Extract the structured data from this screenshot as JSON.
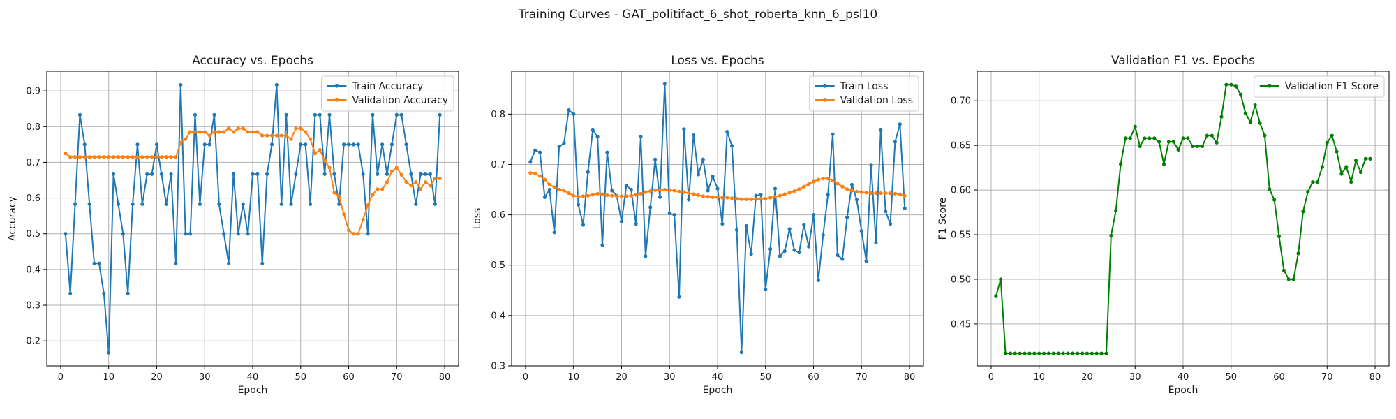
{
  "figure_title": "Training Curves - GAT_politifact_6_shot_roberta_knn_6_psl10",
  "chart_data": [
    {
      "type": "line",
      "title": "Accuracy vs. Epochs",
      "xlabel": "Epoch",
      "ylabel": "Accuracy",
      "xlim": [
        -2.9,
        82.9
      ],
      "ylim": [
        0.13,
        0.955
      ],
      "xticks": [
        0,
        10,
        20,
        30,
        40,
        50,
        60,
        70,
        80
      ],
      "yticks": [
        0.2,
        0.3,
        0.4,
        0.5,
        0.6,
        0.7,
        0.8,
        0.9
      ],
      "ytick_decimals": 1,
      "grid": true,
      "legend": "upper-right",
      "x_start": 1,
      "series": [
        {
          "name": "Train Accuracy",
          "color": "#1f77b4",
          "values": [
            0.5,
            0.333,
            0.583,
            0.833,
            0.75,
            0.583,
            0.417,
            0.417,
            0.333,
            0.167,
            0.667,
            0.583,
            0.5,
            0.333,
            0.583,
            0.75,
            0.583,
            0.667,
            0.667,
            0.75,
            0.667,
            0.583,
            0.667,
            0.417,
            0.917,
            0.5,
            0.5,
            0.833,
            0.583,
            0.75,
            0.75,
            0.833,
            0.583,
            0.5,
            0.417,
            0.667,
            0.5,
            0.583,
            0.5,
            0.667,
            0.667,
            0.417,
            0.667,
            0.75,
            0.917,
            0.583,
            0.833,
            0.583,
            0.667,
            0.75,
            0.75,
            0.583,
            0.833,
            0.833,
            0.667,
            0.833,
            0.667,
            0.583,
            0.75,
            0.75,
            0.75,
            0.75,
            0.667,
            0.5,
            0.833,
            0.667,
            0.75,
            0.667,
            0.75,
            0.833,
            0.833,
            0.75,
            0.667,
            0.583,
            0.667,
            0.667,
            0.667,
            0.583,
            0.833
          ]
        },
        {
          "name": "Validation Accuracy",
          "color": "#ff7f0e",
          "values": [
            0.725,
            0.715,
            0.715,
            0.715,
            0.715,
            0.715,
            0.715,
            0.715,
            0.715,
            0.715,
            0.715,
            0.715,
            0.715,
            0.715,
            0.715,
            0.715,
            0.715,
            0.715,
            0.715,
            0.715,
            0.715,
            0.715,
            0.715,
            0.715,
            0.755,
            0.765,
            0.785,
            0.785,
            0.785,
            0.785,
            0.775,
            0.785,
            0.785,
            0.785,
            0.795,
            0.785,
            0.795,
            0.795,
            0.785,
            0.785,
            0.785,
            0.775,
            0.775,
            0.775,
            0.775,
            0.775,
            0.775,
            0.765,
            0.795,
            0.795,
            0.785,
            0.765,
            0.725,
            0.735,
            0.705,
            0.685,
            0.615,
            0.605,
            0.555,
            0.51,
            0.5,
            0.5,
            0.54,
            0.58,
            0.61,
            0.625,
            0.625,
            0.645,
            0.675,
            0.685,
            0.665,
            0.645,
            0.635,
            0.645,
            0.625,
            0.645,
            0.635,
            0.655,
            0.655
          ]
        }
      ]
    },
    {
      "type": "line",
      "title": "Loss vs. Epochs",
      "xlabel": "Epoch",
      "ylabel": "Loss",
      "xlim": [
        -2.9,
        82.9
      ],
      "ylim": [
        0.3,
        0.885
      ],
      "xticks": [
        0,
        10,
        20,
        30,
        40,
        50,
        60,
        70,
        80
      ],
      "yticks": [
        0.3,
        0.4,
        0.5,
        0.6,
        0.7,
        0.8
      ],
      "ytick_decimals": 1,
      "grid": true,
      "legend": "upper-right",
      "x_start": 1,
      "series": [
        {
          "name": "Train Loss",
          "color": "#1f77b4",
          "values": [
            0.705,
            0.728,
            0.724,
            0.635,
            0.65,
            0.565,
            0.735,
            0.742,
            0.808,
            0.8,
            0.62,
            0.58,
            0.685,
            0.768,
            0.755,
            0.54,
            0.724,
            0.648,
            0.638,
            0.587,
            0.658,
            0.65,
            0.582,
            0.755,
            0.518,
            0.615,
            0.71,
            0.635,
            0.86,
            0.603,
            0.6,
            0.437,
            0.77,
            0.63,
            0.758,
            0.68,
            0.71,
            0.648,
            0.676,
            0.652,
            0.582,
            0.765,
            0.737,
            0.57,
            0.327,
            0.578,
            0.522,
            0.638,
            0.64,
            0.452,
            0.532,
            0.652,
            0.518,
            0.528,
            0.572,
            0.53,
            0.525,
            0.58,
            0.537,
            0.6,
            0.47,
            0.56,
            0.64,
            0.76,
            0.52,
            0.512,
            0.595,
            0.66,
            0.63,
            0.568,
            0.508,
            0.698,
            0.545,
            0.768,
            0.607,
            0.582,
            0.745,
            0.78,
            0.613
          ]
        },
        {
          "name": "Validation Loss",
          "color": "#ff7f0e",
          "values": [
            0.683,
            0.682,
            0.677,
            0.67,
            0.66,
            0.655,
            0.65,
            0.648,
            0.643,
            0.638,
            0.636,
            0.637,
            0.638,
            0.64,
            0.642,
            0.641,
            0.639,
            0.638,
            0.637,
            0.637,
            0.637,
            0.638,
            0.64,
            0.642,
            0.645,
            0.647,
            0.649,
            0.65,
            0.65,
            0.649,
            0.648,
            0.646,
            0.645,
            0.643,
            0.641,
            0.639,
            0.637,
            0.636,
            0.635,
            0.635,
            0.634,
            0.634,
            0.633,
            0.632,
            0.631,
            0.631,
            0.631,
            0.631,
            0.632,
            0.632,
            0.634,
            0.636,
            0.638,
            0.641,
            0.644,
            0.647,
            0.651,
            0.656,
            0.661,
            0.666,
            0.67,
            0.672,
            0.672,
            0.668,
            0.662,
            0.656,
            0.651,
            0.648,
            0.646,
            0.645,
            0.644,
            0.643,
            0.643,
            0.643,
            0.643,
            0.643,
            0.642,
            0.641,
            0.638
          ]
        }
      ]
    },
    {
      "type": "line",
      "title": "Validation F1 vs. Epochs",
      "xlabel": "Epoch",
      "ylabel": "F1 Score",
      "xlim": [
        -2.9,
        82.9
      ],
      "ylim": [
        0.403,
        0.733
      ],
      "xticks": [
        0,
        10,
        20,
        30,
        40,
        50,
        60,
        70,
        80
      ],
      "yticks": [
        0.45,
        0.5,
        0.55,
        0.6,
        0.65,
        0.7
      ],
      "ytick_decimals": 2,
      "grid": true,
      "legend": "upper-right",
      "x_start": 1,
      "series": [
        {
          "name": "Validation F1 Score",
          "color": "#008000",
          "values": [
            0.481,
            0.5,
            0.417,
            0.417,
            0.417,
            0.417,
            0.417,
            0.417,
            0.417,
            0.417,
            0.417,
            0.417,
            0.417,
            0.417,
            0.417,
            0.417,
            0.417,
            0.417,
            0.417,
            0.417,
            0.417,
            0.417,
            0.417,
            0.417,
            0.549,
            0.577,
            0.629,
            0.658,
            0.658,
            0.671,
            0.649,
            0.658,
            0.658,
            0.658,
            0.654,
            0.629,
            0.654,
            0.654,
            0.645,
            0.658,
            0.658,
            0.649,
            0.649,
            0.649,
            0.661,
            0.661,
            0.653,
            0.682,
            0.718,
            0.718,
            0.716,
            0.707,
            0.686,
            0.676,
            0.695,
            0.675,
            0.661,
            0.601,
            0.589,
            0.548,
            0.51,
            0.5,
            0.5,
            0.529,
            0.576,
            0.598,
            0.609,
            0.609,
            0.626,
            0.653,
            0.661,
            0.643,
            0.618,
            0.626,
            0.609,
            0.633,
            0.62,
            0.635,
            0.635
          ]
        }
      ]
    }
  ]
}
